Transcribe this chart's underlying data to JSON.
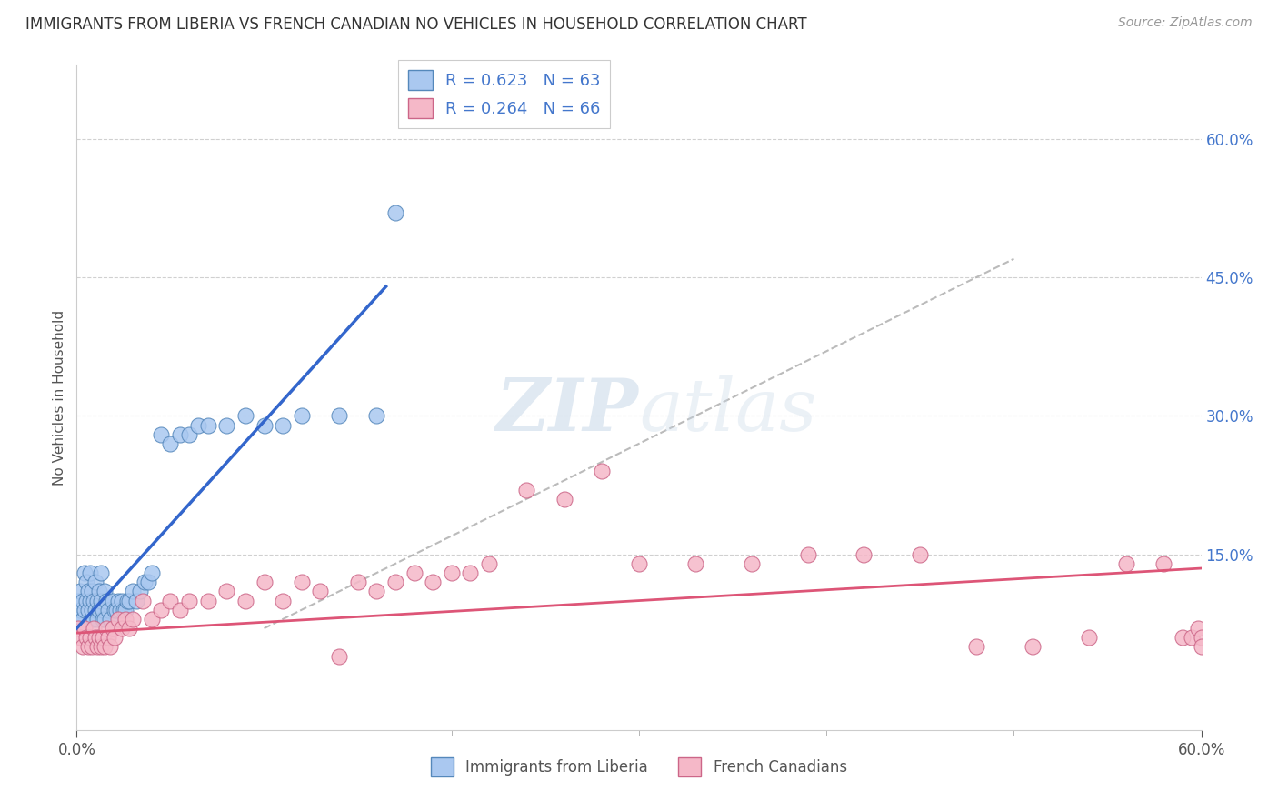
{
  "title": "IMMIGRANTS FROM LIBERIA VS FRENCH CANADIAN NO VEHICLES IN HOUSEHOLD CORRELATION CHART",
  "source": "Source: ZipAtlas.com",
  "ylabel": "No Vehicles in Household",
  "xlim": [
    0.0,
    0.6
  ],
  "ylim": [
    -0.04,
    0.68
  ],
  "yticks": [
    0.0,
    0.15,
    0.3,
    0.45,
    0.6
  ],
  "ytick_labels": [
    "",
    "15.0%",
    "30.0%",
    "45.0%",
    "60.0%"
  ],
  "background_color": "#ffffff",
  "grid_color": "#d0d0d0",
  "liberia_color": "#aac8f0",
  "liberia_edge_color": "#5588bb",
  "french_color": "#f5b8c8",
  "french_edge_color": "#cc6688",
  "liberia_line_color": "#3366cc",
  "french_line_color": "#dd5577",
  "R_liberia": 0.623,
  "N_liberia": 63,
  "R_french": 0.264,
  "N_french": 66,
  "liberia_x": [
    0.001,
    0.001,
    0.002,
    0.002,
    0.003,
    0.003,
    0.004,
    0.004,
    0.005,
    0.005,
    0.006,
    0.006,
    0.007,
    0.007,
    0.008,
    0.008,
    0.009,
    0.009,
    0.01,
    0.01,
    0.011,
    0.011,
    0.012,
    0.012,
    0.013,
    0.013,
    0.014,
    0.014,
    0.015,
    0.015,
    0.016,
    0.017,
    0.018,
    0.019,
    0.02,
    0.021,
    0.022,
    0.023,
    0.024,
    0.025,
    0.026,
    0.027,
    0.028,
    0.03,
    0.032,
    0.034,
    0.036,
    0.038,
    0.04,
    0.045,
    0.05,
    0.055,
    0.06,
    0.065,
    0.07,
    0.08,
    0.09,
    0.1,
    0.11,
    0.12,
    0.14,
    0.16,
    0.17
  ],
  "liberia_y": [
    0.08,
    0.1,
    0.09,
    0.11,
    0.1,
    0.08,
    0.09,
    0.13,
    0.1,
    0.12,
    0.11,
    0.09,
    0.13,
    0.1,
    0.09,
    0.11,
    0.08,
    0.1,
    0.09,
    0.12,
    0.1,
    0.08,
    0.09,
    0.11,
    0.13,
    0.1,
    0.08,
    0.09,
    0.11,
    0.08,
    0.1,
    0.09,
    0.08,
    0.1,
    0.09,
    0.09,
    0.1,
    0.09,
    0.1,
    0.09,
    0.09,
    0.1,
    0.1,
    0.11,
    0.1,
    0.11,
    0.12,
    0.12,
    0.13,
    0.28,
    0.27,
    0.28,
    0.28,
    0.29,
    0.29,
    0.29,
    0.3,
    0.29,
    0.29,
    0.3,
    0.3,
    0.3,
    0.52
  ],
  "french_x": [
    0.001,
    0.002,
    0.003,
    0.004,
    0.005,
    0.006,
    0.007,
    0.008,
    0.009,
    0.01,
    0.011,
    0.012,
    0.013,
    0.014,
    0.015,
    0.016,
    0.017,
    0.018,
    0.019,
    0.02,
    0.022,
    0.024,
    0.026,
    0.028,
    0.03,
    0.035,
    0.04,
    0.045,
    0.05,
    0.055,
    0.06,
    0.07,
    0.08,
    0.09,
    0.1,
    0.11,
    0.12,
    0.13,
    0.14,
    0.15,
    0.16,
    0.17,
    0.18,
    0.19,
    0.2,
    0.21,
    0.22,
    0.24,
    0.26,
    0.28,
    0.3,
    0.33,
    0.36,
    0.39,
    0.42,
    0.45,
    0.48,
    0.51,
    0.54,
    0.56,
    0.58,
    0.59,
    0.595,
    0.598,
    0.6,
    0.6
  ],
  "french_y": [
    0.07,
    0.06,
    0.05,
    0.07,
    0.06,
    0.05,
    0.06,
    0.05,
    0.07,
    0.06,
    0.05,
    0.06,
    0.05,
    0.06,
    0.05,
    0.07,
    0.06,
    0.05,
    0.07,
    0.06,
    0.08,
    0.07,
    0.08,
    0.07,
    0.08,
    0.1,
    0.08,
    0.09,
    0.1,
    0.09,
    0.1,
    0.1,
    0.11,
    0.1,
    0.12,
    0.1,
    0.12,
    0.11,
    0.04,
    0.12,
    0.11,
    0.12,
    0.13,
    0.12,
    0.13,
    0.13,
    0.14,
    0.22,
    0.21,
    0.24,
    0.14,
    0.14,
    0.14,
    0.15,
    0.15,
    0.15,
    0.05,
    0.05,
    0.06,
    0.14,
    0.14,
    0.06,
    0.06,
    0.07,
    0.06,
    0.05
  ],
  "dash_line_x": [
    0.1,
    0.5
  ],
  "dash_line_y": [
    0.07,
    0.47
  ],
  "liberia_line_x": [
    0.0,
    0.165
  ],
  "liberia_line_y_start": 0.07,
  "liberia_line_y_end": 0.44,
  "french_line_x": [
    0.0,
    0.6
  ],
  "french_line_y_start": 0.065,
  "french_line_y_end": 0.135
}
